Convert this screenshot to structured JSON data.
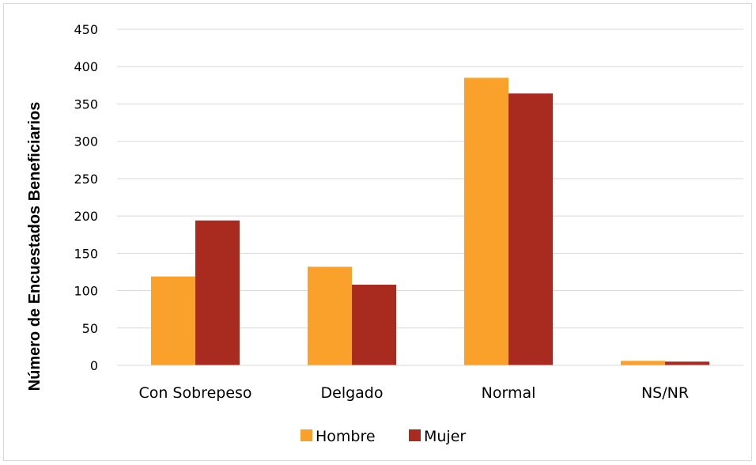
{
  "chart_data": {
    "type": "bar",
    "title": "",
    "xlabel": "",
    "ylabel": "Número de Encuestados Beneficiarios",
    "categories": [
      "Con Sobrepeso",
      "Delgado",
      "Normal",
      "NS/NR"
    ],
    "series": [
      {
        "name": "Hombre",
        "color": "#f9a12a",
        "values": [
          119,
          132,
          385,
          6
        ]
      },
      {
        "name": "Mujer",
        "color": "#a92a1f",
        "values": [
          194,
          108,
          364,
          5
        ]
      }
    ],
    "ylim": [
      0,
      450
    ],
    "yticks": [
      "0",
      "50",
      "100",
      "150",
      "200",
      "250",
      "300",
      "350",
      "400",
      "450"
    ],
    "grid": true,
    "legend_position": "bottom"
  }
}
